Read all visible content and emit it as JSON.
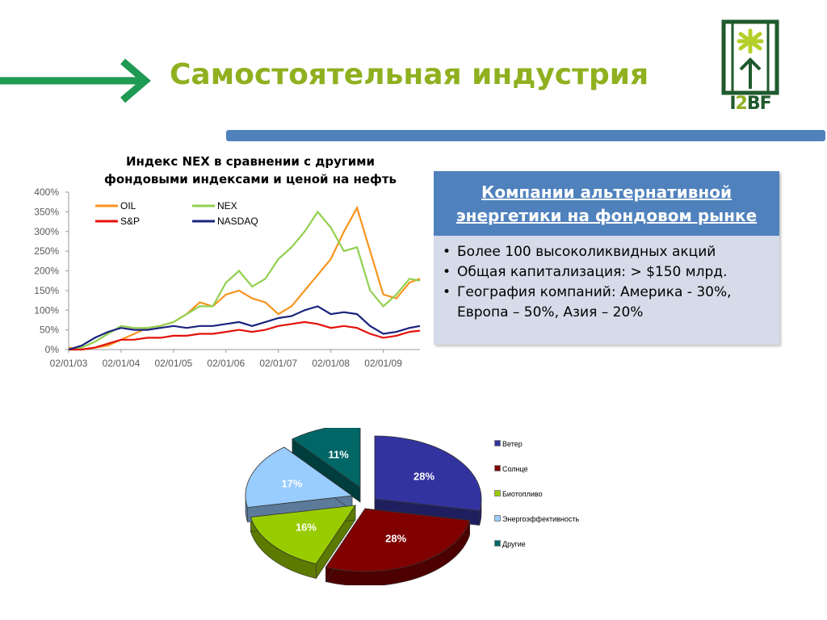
{
  "slide": {
    "title": "Самостоятельная индустрия",
    "logo_text_left": "I",
    "logo_text_mid": "2",
    "logo_text_right": "BF"
  },
  "colors": {
    "title": "#8fb01f",
    "arrow": "#1e9a53",
    "bar": "#4f81bd",
    "logo": "#1f5a2d"
  },
  "line_chart": {
    "title_line1": "Индекс NEX в сравнении с другими",
    "title_line2": "фондовыми индексами  и ценой на нефть"
  },
  "info_box": {
    "header_line1": "Компании альтернативной",
    "header_line2": "энергетики на фондовом рынке",
    "bullets": [
      "Более 100 высоколиквидных акций",
      "Общая капитализация: > $150 млрд.",
      "География компаний: Америка - 30%, Европа – 50%, Азия – 20%"
    ]
  },
  "chart_data": [
    {
      "type": "line",
      "title": "Индекс NEX в сравнении с другими фондовыми индексами  и ценой на нефть",
      "x_tick_labels": [
        "02/01/03",
        "02/01/04",
        "02/01/05",
        "02/01/06",
        "02/01/07",
        "02/01/08",
        "02/01/09"
      ],
      "y_tick_labels": [
        "0%",
        "50%",
        "100%",
        "150%",
        "200%",
        "250%",
        "300%",
        "350%",
        "400%"
      ],
      "ylim": [
        0,
        400
      ],
      "x": [
        2003.0,
        2003.25,
        2003.5,
        2003.75,
        2004.0,
        2004.25,
        2004.5,
        2004.75,
        2005.0,
        2005.25,
        2005.5,
        2005.75,
        2006.0,
        2006.25,
        2006.5,
        2006.75,
        2007.0,
        2007.25,
        2007.5,
        2007.75,
        2008.0,
        2008.25,
        2008.5,
        2008.75,
        2009.0,
        2009.25,
        2009.5,
        2009.7
      ],
      "legend_position": "top-left",
      "series": [
        {
          "name": "OIL",
          "color": "#f7941d",
          "values": [
            5,
            0,
            5,
            10,
            25,
            40,
            55,
            60,
            70,
            90,
            120,
            110,
            140,
            150,
            130,
            120,
            90,
            110,
            150,
            190,
            230,
            300,
            360,
            250,
            140,
            130,
            170,
            180
          ]
        },
        {
          "name": "NEX",
          "color": "#92d050",
          "values": [
            0,
            5,
            20,
            40,
            60,
            55,
            55,
            60,
            70,
            90,
            110,
            110,
            170,
            200,
            160,
            180,
            230,
            260,
            300,
            350,
            310,
            250,
            260,
            150,
            110,
            140,
            180,
            175
          ]
        },
        {
          "name": "S&P",
          "color": "#e3120b",
          "values": [
            0,
            0,
            5,
            15,
            25,
            25,
            30,
            30,
            35,
            35,
            40,
            40,
            45,
            50,
            45,
            50,
            60,
            65,
            70,
            65,
            55,
            60,
            55,
            40,
            30,
            35,
            45,
            48
          ]
        },
        {
          "name": "NASDAQ",
          "color": "#1a237e",
          "values": [
            0,
            10,
            30,
            45,
            55,
            50,
            50,
            55,
            60,
            55,
            60,
            60,
            65,
            70,
            60,
            70,
            80,
            85,
            100,
            110,
            90,
            95,
            90,
            60,
            40,
            45,
            55,
            60
          ]
        }
      ]
    },
    {
      "type": "pie",
      "categories": [
        "Ветер",
        "Солнце",
        "Биотопливо",
        "Энергоэффективность",
        "Другие"
      ],
      "values": [
        28,
        28,
        16,
        17,
        11
      ],
      "labels": [
        "28%",
        "28%",
        "16%",
        "17%",
        "11%"
      ],
      "colors": [
        "#3333a0",
        "#800000",
        "#99cc00",
        "#99ccff",
        "#006666"
      ],
      "legend_position": "right"
    }
  ]
}
